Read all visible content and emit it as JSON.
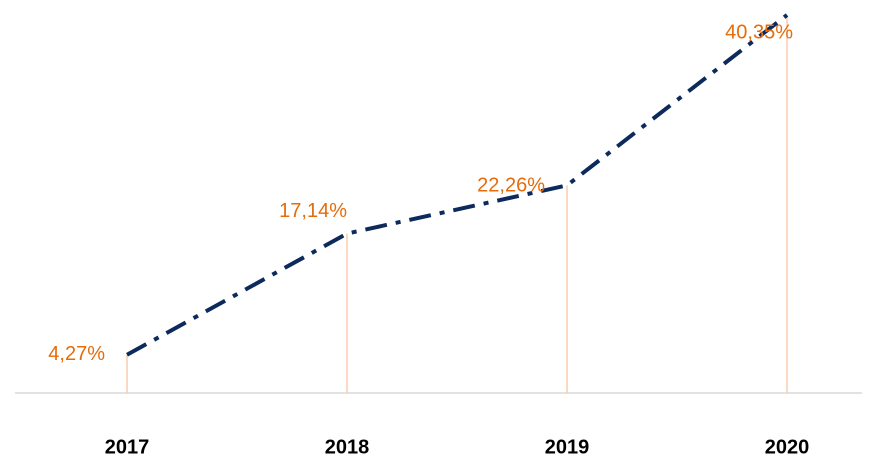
{
  "chart_data": {
    "type": "line",
    "categories": [
      "2017",
      "2018",
      "2019",
      "2020"
    ],
    "series": [
      {
        "color": "#0d2a5c",
        "values": [
          4.27,
          17.14,
          22.26,
          40.35
        ],
        "value_labels": [
          "4,27%",
          "17,14%",
          "22,26%",
          "40,35%"
        ]
      }
    ],
    "label_color": "#e46c0a"
  }
}
